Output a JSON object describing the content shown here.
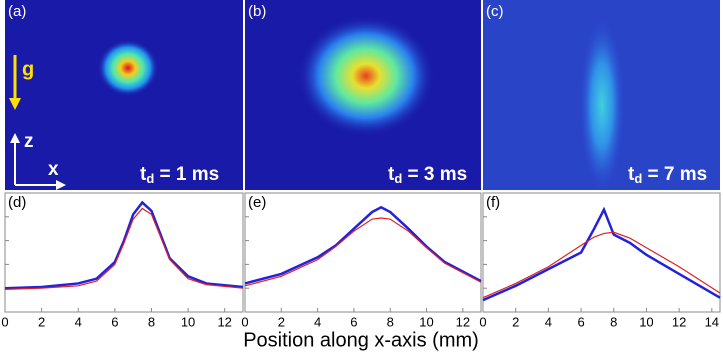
{
  "images": [
    {
      "label": "(a)",
      "time_symbol": "t",
      "time_subscript": "d",
      "time_value": " = 1 ms"
    },
    {
      "label": "(b)",
      "time_symbol": "t",
      "time_subscript": "d",
      "time_value": " = 3 ms"
    },
    {
      "label": "(c)",
      "time_symbol": "t",
      "time_subscript": "d",
      "time_value": " = 7 ms"
    }
  ],
  "annotations": {
    "gravity": "g",
    "z_axis": "z",
    "x_axis": "x"
  },
  "axis_label": "Position along x-axis (mm)",
  "chart_data": [
    {
      "type": "line",
      "label": "(d)",
      "x": [
        0,
        2,
        4,
        5,
        6,
        6.5,
        7,
        7.5,
        8,
        8.5,
        9,
        10,
        11,
        13
      ],
      "series": [
        {
          "color": "#2222dd",
          "values": [
            0.2,
            0.21,
            0.24,
            0.28,
            0.42,
            0.6,
            0.82,
            0.92,
            0.85,
            0.65,
            0.45,
            0.3,
            0.24,
            0.21
          ]
        },
        {
          "color": "#e02020",
          "values": [
            0.19,
            0.2,
            0.22,
            0.26,
            0.4,
            0.58,
            0.78,
            0.87,
            0.82,
            0.63,
            0.44,
            0.28,
            0.23,
            0.2
          ]
        }
      ],
      "xlim": [
        0,
        13
      ],
      "xticks": [
        0,
        2,
        4,
        6,
        8,
        10,
        12
      ],
      "ylim": [
        0,
        1
      ]
    },
    {
      "type": "line",
      "label": "(e)",
      "x": [
        0,
        2,
        4,
        5,
        6,
        7,
        7.5,
        8,
        9,
        10,
        11,
        13
      ],
      "series": [
        {
          "color": "#2222dd",
          "values": [
            0.24,
            0.32,
            0.46,
            0.56,
            0.7,
            0.84,
            0.88,
            0.84,
            0.7,
            0.55,
            0.42,
            0.26
          ]
        },
        {
          "color": "#e02020",
          "values": [
            0.22,
            0.3,
            0.44,
            0.55,
            0.68,
            0.78,
            0.79,
            0.78,
            0.68,
            0.54,
            0.41,
            0.25
          ]
        }
      ],
      "xlim": [
        0,
        13
      ],
      "xticks": [
        0,
        2,
        4,
        6,
        8,
        10,
        12
      ],
      "ylim": [
        0,
        1
      ]
    },
    {
      "type": "line",
      "label": "(f)",
      "x": [
        0,
        2,
        4,
        6,
        6.8,
        7.4,
        8,
        9,
        10,
        12,
        14.5
      ],
      "series": [
        {
          "color": "#2222dd",
          "values": [
            0.1,
            0.22,
            0.36,
            0.5,
            0.7,
            0.86,
            0.65,
            0.58,
            0.48,
            0.32,
            0.12
          ]
        },
        {
          "color": "#e02020",
          "values": [
            0.12,
            0.24,
            0.38,
            0.56,
            0.63,
            0.66,
            0.67,
            0.62,
            0.54,
            0.38,
            0.16
          ]
        }
      ],
      "xlim": [
        0,
        14.5
      ],
      "xticks": [
        0,
        2,
        4,
        6,
        8,
        10,
        12,
        14
      ],
      "ylim": [
        0,
        1
      ]
    }
  ]
}
